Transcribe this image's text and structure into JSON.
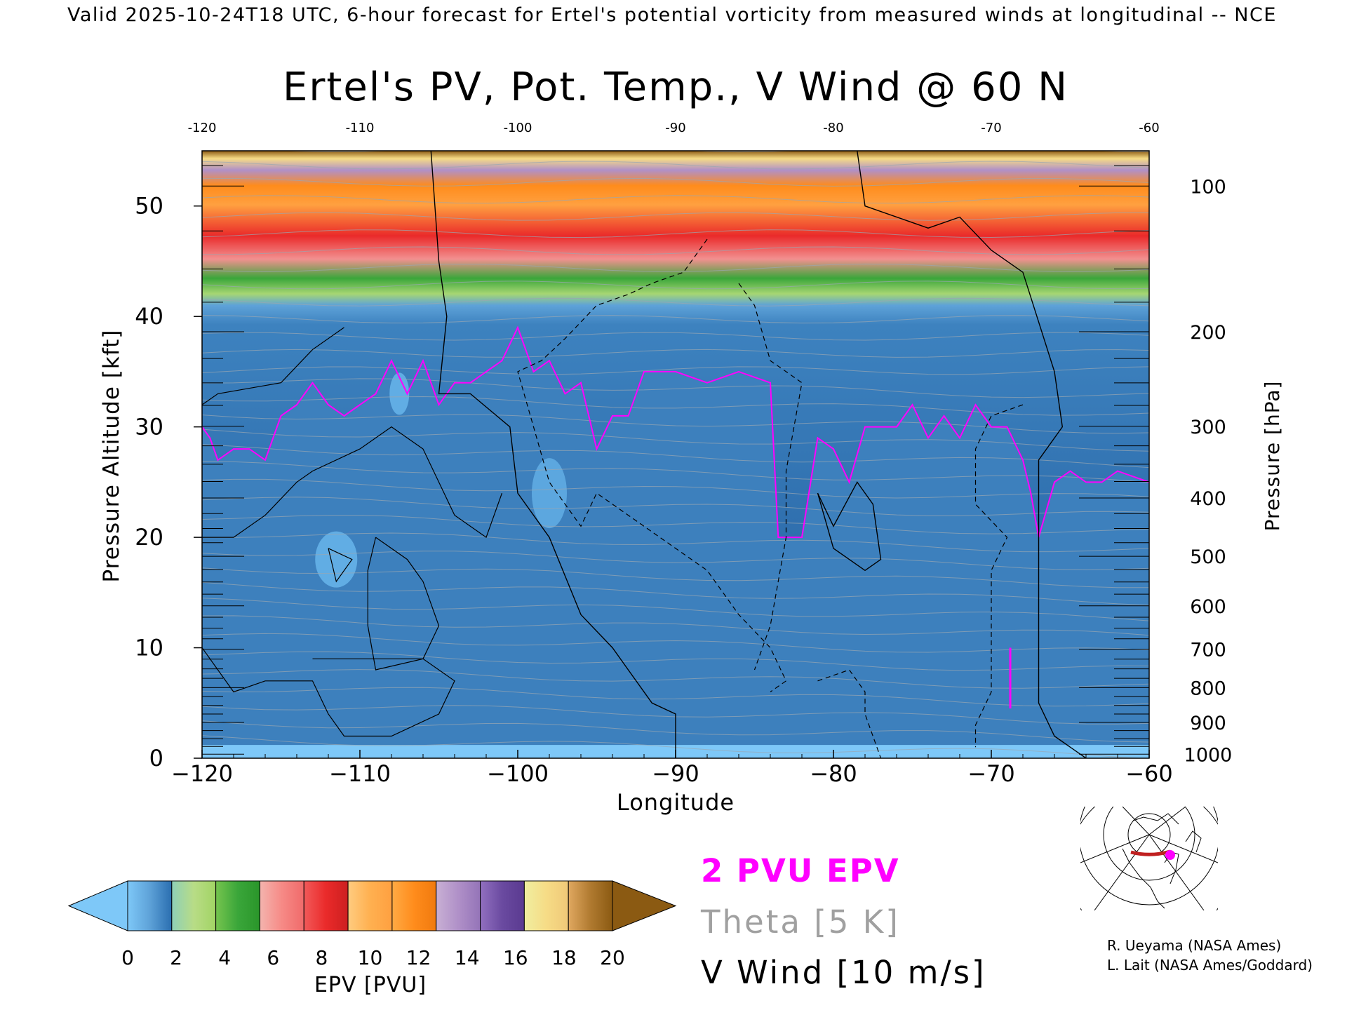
{
  "header": "Valid 2025-10-24T18 UTC, 6-hour forecast for Ertel's potential vorticity from measured winds at longitudinal -- NCE",
  "chart_data": {
    "type": "heatmap",
    "title": "Ertel's PV, Pot. Temp., V Wind @ 60 N",
    "xlabel": "Longitude",
    "ylabel_left": "Pressure Altitude [kft]",
    "ylabel_right": "Pressure [hPa]",
    "xlim": [
      -120,
      -60
    ],
    "ylim": [
      0,
      55
    ],
    "x_ticks": [
      -120,
      -110,
      -100,
      -90,
      -80,
      -70,
      -60
    ],
    "x_tick_labels": [
      "−120",
      "−110",
      "−100",
      "−90",
      "−80",
      "−70",
      "−60"
    ],
    "top_tick_labels": [
      "-120",
      "-110",
      "-100",
      "-90",
      "-80",
      "-70",
      "-60"
    ],
    "y_ticks": [
      0,
      10,
      20,
      30,
      40,
      50
    ],
    "y_tick_labels": [
      "0",
      "10",
      "20",
      "30",
      "40",
      "50"
    ],
    "pressure_axis": [
      {
        "hpa": 100,
        "label": "100"
      },
      {
        "hpa": 200,
        "label": "200"
      },
      {
        "hpa": 300,
        "label": "300"
      },
      {
        "hpa": 400,
        "label": "400"
      },
      {
        "hpa": 500,
        "label": "500"
      },
      {
        "hpa": 600,
        "label": "600"
      },
      {
        "hpa": 700,
        "label": "700"
      },
      {
        "hpa": 800,
        "label": "800"
      },
      {
        "hpa": 900,
        "label": "900"
      },
      {
        "hpa": 1000,
        "label": "1000"
      }
    ],
    "pv_2pvu_contour": [
      [
        -120,
        30
      ],
      [
        -119.5,
        29
      ],
      [
        -119,
        27
      ],
      [
        -118,
        28
      ],
      [
        -117,
        28
      ],
      [
        -116,
        27
      ],
      [
        -115,
        31
      ],
      [
        -114,
        32
      ],
      [
        -113,
        34
      ],
      [
        -112,
        32
      ],
      [
        -111,
        31
      ],
      [
        -110,
        32
      ],
      [
        -109,
        33
      ],
      [
        -108,
        36
      ],
      [
        -107,
        33
      ],
      [
        -106,
        36
      ],
      [
        -105,
        32
      ],
      [
        -104,
        34
      ],
      [
        -103,
        34
      ],
      [
        -102,
        35
      ],
      [
        -101,
        36
      ],
      [
        -100,
        39
      ],
      [
        -99,
        35
      ],
      [
        -98,
        36
      ],
      [
        -97,
        33
      ],
      [
        -96,
        34
      ],
      [
        -95,
        28
      ],
      [
        -94,
        31
      ],
      [
        -93,
        31
      ],
      [
        -92,
        35
      ],
      [
        -90,
        35
      ],
      [
        -88,
        34
      ],
      [
        -86,
        35
      ],
      [
        -84,
        34
      ],
      [
        -83.5,
        20
      ],
      [
        -82,
        20
      ],
      [
        -81,
        29
      ],
      [
        -80,
        28
      ],
      [
        -79,
        25
      ],
      [
        -78,
        30
      ],
      [
        -76,
        30
      ],
      [
        -75,
        32
      ],
      [
        -74,
        29
      ],
      [
        -73,
        31
      ],
      [
        -72,
        29
      ],
      [
        -71,
        32
      ],
      [
        -70,
        30
      ],
      [
        -69,
        30
      ],
      [
        -68,
        27
      ],
      [
        -67.5,
        24
      ],
      [
        -67,
        20
      ],
      [
        -66,
        25
      ],
      [
        -65,
        26
      ],
      [
        -64,
        25
      ],
      [
        -63,
        25
      ],
      [
        -62,
        26
      ],
      [
        -60,
        25
      ]
    ],
    "v_wind_zero_contours": [
      {
        "label": "0",
        "points": [
          [
            -105.5,
            55
          ],
          [
            -105,
            45
          ],
          [
            -104.5,
            40
          ],
          [
            -105,
            33
          ],
          [
            -103,
            33
          ],
          [
            -100.5,
            30
          ],
          [
            -100,
            24
          ],
          [
            -98,
            20
          ],
          [
            -96,
            13
          ],
          [
            -94,
            10
          ],
          [
            -91.5,
            5
          ],
          [
            -90,
            4
          ],
          [
            -90,
            0
          ]
        ]
      },
      {
        "label": "0",
        "points": [
          [
            -78.5,
            55
          ],
          [
            -78,
            50
          ],
          [
            -74,
            48
          ],
          [
            -72,
            49
          ],
          [
            -70,
            46
          ],
          [
            -68,
            44
          ],
          [
            -66,
            35
          ],
          [
            -65.5,
            30
          ],
          [
            -67,
            27
          ],
          [
            -67,
            13
          ],
          [
            -67,
            5
          ],
          [
            -66,
            2
          ],
          [
            -64,
            0
          ]
        ]
      },
      {
        "label": "0",
        "points": [
          [
            -81,
            24
          ],
          [
            -80,
            19
          ],
          [
            -78,
            17
          ],
          [
            -77,
            18
          ],
          [
            -77.5,
            23
          ],
          [
            -78.5,
            25
          ],
          [
            -80,
            21
          ],
          [
            -81,
            24
          ]
        ]
      }
    ],
    "v_wind_solid_contours": [
      {
        "label": "10",
        "points": [
          [
            -111,
            39
          ],
          [
            -113,
            37
          ],
          [
            -115,
            34
          ],
          [
            -119,
            33
          ],
          [
            -120,
            32
          ]
        ]
      },
      {
        "label": "10",
        "points": [
          [
            -109,
            20
          ],
          [
            -107,
            18
          ],
          [
            -106,
            16
          ],
          [
            -105,
            12
          ],
          [
            -106,
            9
          ],
          [
            -109,
            8
          ],
          [
            -109.5,
            12
          ],
          [
            -109.5,
            17
          ],
          [
            -109,
            20
          ]
        ]
      },
      {
        "label": "10",
        "points": [
          [
            -120,
            10
          ],
          [
            -118,
            6
          ],
          [
            -116,
            7
          ],
          [
            -113,
            7
          ],
          [
            -112,
            4
          ],
          [
            -111,
            2
          ],
          [
            -108,
            2
          ],
          [
            -105,
            4
          ],
          [
            -104,
            7
          ],
          [
            -106,
            9
          ],
          [
            -110,
            9
          ],
          [
            -113,
            9
          ]
        ]
      },
      {
        "label": "10",
        "points": [
          [
            -112,
            19
          ],
          [
            -111.5,
            16
          ],
          [
            -110.5,
            18
          ],
          [
            -112,
            19
          ]
        ]
      },
      {
        "label": "10",
        "points": [
          [
            -120,
            20
          ],
          [
            -118,
            20
          ],
          [
            -116,
            22
          ],
          [
            -114,
            25
          ],
          [
            -113,
            26
          ],
          [
            -110,
            28
          ],
          [
            -108,
            30
          ],
          [
            -106,
            28
          ],
          [
            -104,
            22
          ],
          [
            -102,
            20
          ],
          [
            -101,
            24
          ]
        ]
      }
    ],
    "v_wind_dashed_contours": [
      {
        "label": "-10",
        "points": [
          [
            -88,
            47
          ],
          [
            -89.5,
            44
          ],
          [
            -91.5,
            43
          ],
          [
            -93,
            42
          ],
          [
            -95,
            41
          ],
          [
            -97,
            38
          ],
          [
            -98.5,
            36
          ],
          [
            -100,
            35
          ],
          [
            -99,
            30
          ],
          [
            -98,
            25
          ],
          [
            -96,
            21
          ],
          [
            -95,
            24
          ],
          [
            -93,
            22
          ],
          [
            -91,
            20
          ],
          [
            -88,
            17
          ],
          [
            -86,
            13
          ],
          [
            -84,
            10
          ],
          [
            -83,
            7
          ],
          [
            -84,
            6
          ]
        ]
      },
      {
        "label": "-10",
        "points": [
          [
            -86,
            43
          ],
          [
            -85,
            41
          ],
          [
            -84,
            36
          ],
          [
            -83,
            35
          ],
          [
            -82,
            34
          ],
          [
            -83,
            26
          ],
          [
            -83,
            20
          ],
          [
            -84,
            12
          ],
          [
            -85,
            8
          ]
        ]
      },
      {
        "label": "-10",
        "points": [
          [
            -68,
            32
          ],
          [
            -70,
            31
          ],
          [
            -71,
            28
          ],
          [
            -71,
            23
          ],
          [
            -69,
            20
          ],
          [
            -70,
            17
          ],
          [
            -70,
            12
          ],
          [
            -70,
            6
          ],
          [
            -71,
            3
          ],
          [
            -71,
            1
          ]
        ]
      },
      {
        "label": "-10",
        "points": [
          [
            -81,
            7
          ],
          [
            -79,
            8
          ],
          [
            -78,
            6
          ],
          [
            -78,
            4
          ],
          [
            -77,
            0
          ]
        ]
      }
    ],
    "colorbar": {
      "label": "EPV [PVU]",
      "ticks": [
        "0",
        "2",
        "4",
        "6",
        "8",
        "10",
        "12",
        "14",
        "16",
        "18",
        "20"
      ],
      "under_color": "#7ec8f8",
      "over_color": "#8b5a12",
      "bands": [
        [
          "#7ec8f8",
          "#5ea2d8",
          "#2a6eb0"
        ],
        [
          "#8ed0b8",
          "#b8dc86",
          "#a2d464"
        ],
        [
          "#76c44e",
          "#3aa63a",
          "#2a962a"
        ],
        [
          "#f4b4ae",
          "#f68a86",
          "#f06a6a"
        ],
        [
          "#f25a5a",
          "#ea2a2a",
          "#cc2020"
        ],
        [
          "#ffcc80",
          "#ffb050",
          "#ffa040"
        ],
        [
          "#ffaa44",
          "#ff8c1c",
          "#f07a0e"
        ],
        [
          "#c8b0d4",
          "#b090c8",
          "#9474b8"
        ],
        [
          "#9270c0",
          "#6a4aa0",
          "#5a3a90"
        ],
        [
          "#f0eea0",
          "#f6dc86",
          "#f0c878"
        ],
        [
          "#e0a860",
          "#b07a30",
          "#8b5a12"
        ]
      ]
    },
    "legend": [
      {
        "label": "2 PVU EPV",
        "color": "#ff00ff"
      },
      {
        "label": "Theta [5 K]",
        "color": "#a0a0a0"
      },
      {
        "label": "V Wind [10 m/s]",
        "color": "#000000"
      }
    ],
    "credits": [
      "R. Ueyama (NASA Ames)",
      "L. Lait (NASA Ames/Goddard)"
    ]
  }
}
